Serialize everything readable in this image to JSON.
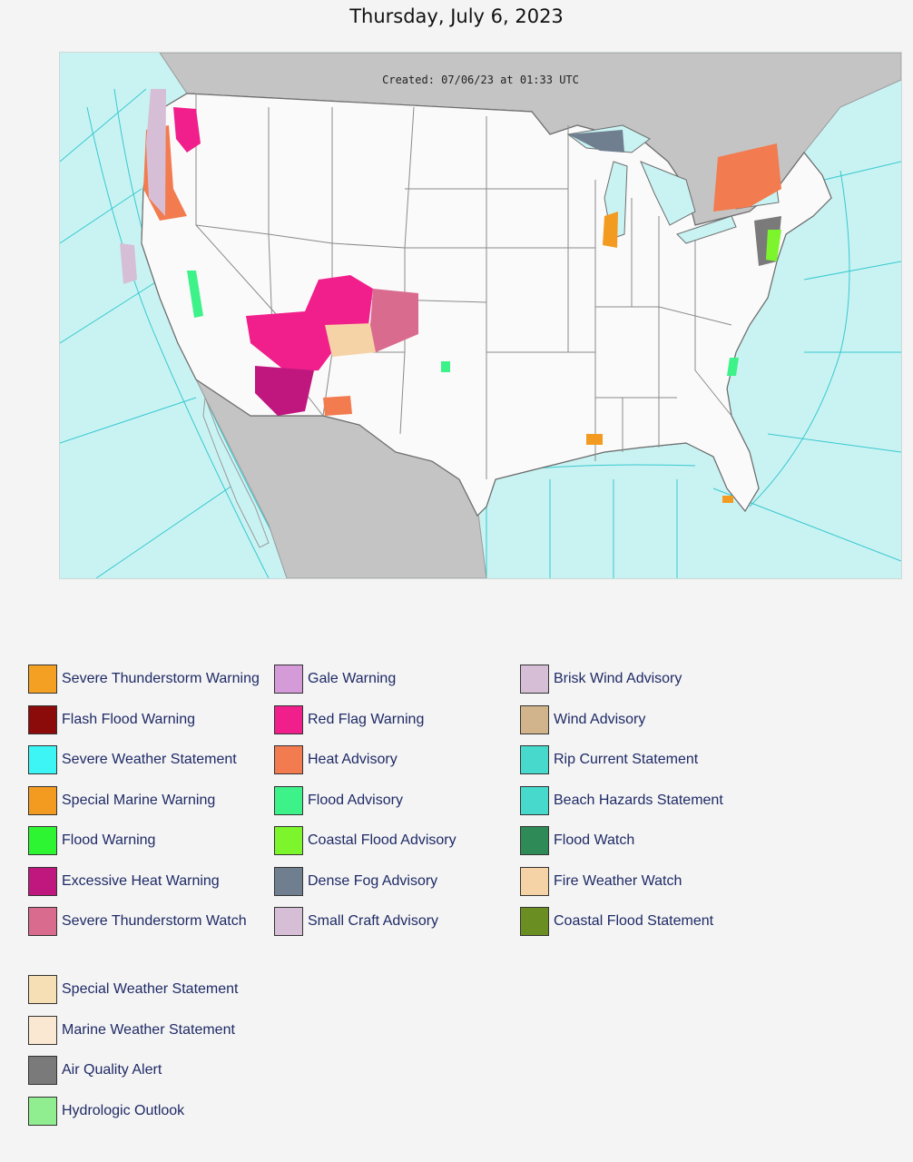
{
  "page": {
    "title": "Thursday, July 6, 2023"
  },
  "map": {
    "created_stamp": "Created: 07/06/23 at 01:33 UTC",
    "colors": {
      "ocean": "#c9f3f3",
      "land": "#fafafa",
      "foreign_land": "#c4c4c4",
      "county_lines": "#b9b9b9",
      "state_lines": "#8a8a8a",
      "marine_zone_lines": "#38c8cf"
    }
  },
  "legend": {
    "col1": [
      {
        "label": "Severe Thunderstorm Warning",
        "color": "#f4a023"
      },
      {
        "label": "Flash Flood Warning",
        "color": "#8b0a0a"
      },
      {
        "label": "Severe Weather Statement",
        "color": "#3ef5f5"
      },
      {
        "label": "Special Marine Warning",
        "color": "#f39b21"
      },
      {
        "label": "Flood Warning",
        "color": "#2ef532"
      },
      {
        "label": "Excessive Heat Warning",
        "color": "#c0177f"
      },
      {
        "label": "Severe Thunderstorm Watch",
        "color": "#d96b8e"
      }
    ],
    "col2": [
      {
        "label": "Gale Warning",
        "color": "#d59ad8"
      },
      {
        "label": "Red Flag Warning",
        "color": "#f01f8b"
      },
      {
        "label": "Heat Advisory",
        "color": "#f27b4f"
      },
      {
        "label": "Flood Advisory",
        "color": "#3ef28a"
      },
      {
        "label": "Coastal Flood Advisory",
        "color": "#7cf52d"
      },
      {
        "label": "Dense Fog Advisory",
        "color": "#6f7f8f"
      },
      {
        "label": "Small Craft Advisory",
        "color": "#d6bfd6"
      }
    ],
    "col3": [
      {
        "label": "Brisk Wind Advisory",
        "color": "#d6bfd6"
      },
      {
        "label": "Wind Advisory",
        "color": "#d2b48c"
      },
      {
        "label": "Rip Current Statement",
        "color": "#46d9cc"
      },
      {
        "label": "Beach Hazards Statement",
        "color": "#46d9cc"
      },
      {
        "label": "Flood Watch",
        "color": "#2e8b57"
      },
      {
        "label": "Fire Weather Watch",
        "color": "#f6d3a6"
      },
      {
        "label": "Coastal Flood Statement",
        "color": "#6b8e23"
      }
    ],
    "col4": [
      {
        "label": "Special Weather Statement",
        "color": "#f7dfb5"
      },
      {
        "label": "Marine Weather Statement",
        "color": "#fbe8d3"
      },
      {
        "label": "Air Quality Alert",
        "color": "#7a7a7a"
      },
      {
        "label": "Hydrologic Outlook",
        "color": "#90ee90"
      }
    ]
  }
}
